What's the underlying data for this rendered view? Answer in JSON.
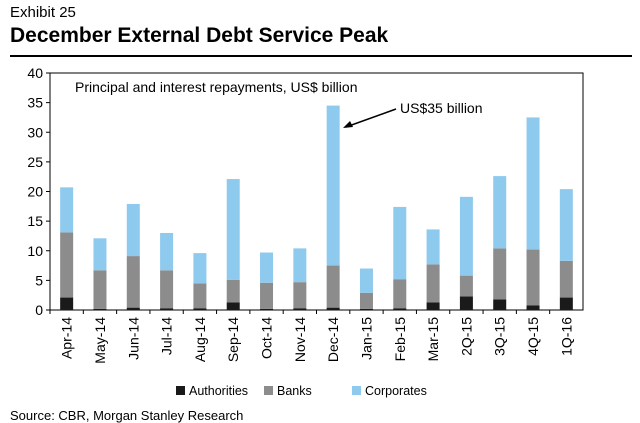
{
  "exhibit": "Exhibit 25",
  "title": "December External Debt Service Peak",
  "source": "Source: CBR, Morgan Stanley Research",
  "colors": {
    "Authorities": "#1a1a1a",
    "Banks": "#8c8c8c",
    "Corporates": "#8ec9ee"
  },
  "chart_data": {
    "type": "bar",
    "stacked": true,
    "subtitle": "Principal and interest repayments, US$ billion",
    "annotation": "US$35 billion",
    "categories": [
      "Apr-14",
      "May-14",
      "Jun-14",
      "Jul-14",
      "Aug-14",
      "Sep-14",
      "Oct-14",
      "Nov-14",
      "Dec-14",
      "Jan-15",
      "Feb-15",
      "Mar-15",
      "2Q-15",
      "3Q-15",
      "4Q-15",
      "1Q-16"
    ],
    "series": [
      {
        "name": "Authorities",
        "values": [
          2.1,
          0.2,
          0.4,
          0.3,
          0.3,
          1.3,
          0.2,
          0.3,
          0.4,
          0.2,
          0.3,
          1.3,
          2.3,
          1.8,
          0.8,
          2.1
        ]
      },
      {
        "name": "Banks",
        "values": [
          11.0,
          6.5,
          8.7,
          6.4,
          4.2,
          3.8,
          4.4,
          4.4,
          7.1,
          2.7,
          4.9,
          6.4,
          3.5,
          8.6,
          9.4,
          6.2
        ]
      },
      {
        "name": "Corporates",
        "values": [
          7.6,
          5.4,
          8.8,
          6.3,
          5.1,
          17.0,
          5.1,
          5.7,
          27.0,
          4.1,
          12.2,
          5.9,
          13.3,
          12.2,
          22.3,
          12.1
        ]
      }
    ],
    "ylim": [
      0,
      40
    ],
    "yticks": [
      "0",
      "5",
      "10",
      "15",
      "20",
      "25",
      "30",
      "35",
      "40"
    ],
    "grid": false,
    "legend": "bottom"
  }
}
